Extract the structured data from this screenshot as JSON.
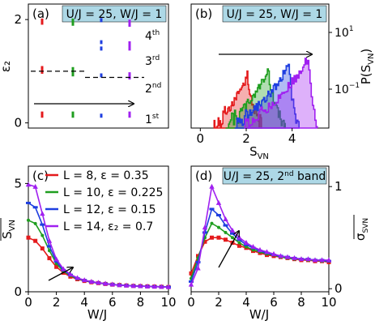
{
  "chart_data": [
    {
      "panel": "(a)",
      "type": "scatter",
      "title": "U/J = 25, W/J = 1",
      "ylabel": "ε₂",
      "xlabel": "",
      "y_ticks": [
        "0",
        "2"
      ],
      "ylim": [
        -0.1,
        2.3
      ],
      "band_labels": [
        "1st",
        "2nd",
        "3rd",
        "4th"
      ],
      "bands": [
        {
          "name": "1st",
          "segments": [
            {
              "color": "red",
              "y": [
                0.1,
                0.22
              ]
            },
            {
              "color": "green",
              "y": [
                0.1,
                0.22
              ]
            },
            {
              "color": "blue",
              "y": [
                0.1,
                0.22
              ]
            },
            {
              "color": "purple",
              "y": [
                0.1,
                0.22
              ]
            }
          ]
        },
        {
          "name": "2nd",
          "segments": [
            {
              "color": "red",
              "y": [
                0.95,
                1.1
              ]
            },
            {
              "color": "green",
              "y": [
                0.9,
                1.08
              ]
            },
            {
              "color": "blue",
              "y": [
                0.88,
                1.0
              ]
            },
            {
              "color": "purple",
              "y": [
                0.84,
                0.98
              ]
            }
          ]
        },
        {
          "name": "3rd",
          "segments": [
            {
              "color": "blue",
              "y": [
                1.4,
                1.6
              ]
            },
            {
              "color": "purple",
              "y": [
                1.4,
                1.58
              ]
            }
          ]
        },
        {
          "name": "4th",
          "segments": [
            {
              "color": "red",
              "y": [
                1.9,
                2.02
              ]
            },
            {
              "color": "green",
              "y": [
                1.88,
                2.02
              ]
            },
            {
              "color": "blue",
              "y": [
                1.95,
                2.05
              ]
            },
            {
              "color": "purple",
              "y": [
                1.86,
                2.0
              ]
            }
          ]
        }
      ]
    },
    {
      "panel": "(b)",
      "type": "area",
      "title": "U/J = 25, W/J = 1",
      "xlabel": "S_VN",
      "ylabel": "P(S_VN)",
      "x_ticks": [
        "0",
        "2",
        "4"
      ],
      "y_ticks": [
        "10^-1",
        "10^1"
      ],
      "y_scale": "log",
      "xlim": [
        -0.4,
        5.6
      ],
      "series": [
        {
          "color": "red",
          "peak": 2.05,
          "x_range": [
            0.6,
            2.7
          ]
        },
        {
          "color": "green",
          "peak": 2.95,
          "x_range": [
            1.1,
            3.7
          ]
        },
        {
          "color": "blue",
          "peak": 3.85,
          "x_range": [
            1.5,
            4.3
          ]
        },
        {
          "color": "purple",
          "peak": 4.7,
          "x_range": [
            1.9,
            5.1
          ]
        }
      ]
    },
    {
      "panel": "(c)",
      "type": "line",
      "xlabel": "W/J",
      "ylabel": "S_VN (mean)",
      "x_ticks": [
        "0",
        "2",
        "4",
        "6",
        "8",
        "10"
      ],
      "y_ticks": [
        "0",
        "5"
      ],
      "xlim": [
        0,
        10
      ],
      "ylim": [
        0,
        5.8
      ],
      "legend": "top-left",
      "x": [
        0,
        0.5,
        1,
        1.5,
        2,
        2.5,
        3,
        3.5,
        4,
        4.5,
        5,
        5.5,
        6,
        6.5,
        7,
        7.5,
        8,
        8.5,
        9,
        9.5,
        10
      ],
      "series": [
        {
          "name": "L = 8,  ε = 0.35",
          "color": "red",
          "values": [
            2.5,
            2.35,
            2.0,
            1.55,
            1.15,
            0.88,
            0.7,
            0.58,
            0.5,
            0.44,
            0.4,
            0.36,
            0.33,
            0.31,
            0.29,
            0.27,
            0.26,
            0.25,
            0.24,
            0.23,
            0.22
          ]
        },
        {
          "name": "L = 10,  ε = 0.225",
          "color": "green",
          "values": [
            3.3,
            3.15,
            2.6,
            1.9,
            1.3,
            0.95,
            0.75,
            0.6,
            0.52,
            0.45,
            0.41,
            0.37,
            0.34,
            0.31,
            0.29,
            0.27,
            0.26,
            0.25,
            0.24,
            0.23,
            0.22
          ]
        },
        {
          "name": "L = 12,  ε = 0.15",
          "color": "blue",
          "values": [
            4.1,
            3.9,
            3.1,
            2.1,
            1.4,
            1.0,
            0.78,
            0.62,
            0.53,
            0.46,
            0.41,
            0.37,
            0.34,
            0.31,
            0.29,
            0.27,
            0.26,
            0.25,
            0.24,
            0.23,
            0.22
          ]
        },
        {
          "name": "L = 14,  ε₂ = 0.7",
          "color": "purple",
          "values": [
            4.95,
            4.85,
            3.6,
            2.35,
            1.5,
            1.05,
            0.8,
            0.64,
            0.54,
            0.47,
            0.42,
            0.38,
            0.34,
            0.31,
            0.29,
            0.27,
            0.26,
            0.25,
            0.24,
            0.23,
            0.22
          ]
        }
      ]
    },
    {
      "panel": "(d)",
      "type": "line",
      "title": "U/J = 25, 2nd band",
      "xlabel": "W/J",
      "ylabel": "σ_SVN (mean)",
      "x_ticks": [
        "0",
        "2",
        "4",
        "6",
        "8",
        "10"
      ],
      "y_ticks": [
        "0",
        "1"
      ],
      "xlim": [
        0,
        10
      ],
      "ylim": [
        -0.03,
        1.2
      ],
      "x": [
        0,
        0.5,
        1,
        1.5,
        2,
        2.5,
        3,
        3.5,
        4,
        4.5,
        5,
        5.5,
        6,
        6.5,
        7,
        7.5,
        8,
        8.5,
        9,
        9.5,
        10
      ],
      "series": [
        {
          "color": "red",
          "values": [
            0.15,
            0.32,
            0.46,
            0.5,
            0.5,
            0.48,
            0.45,
            0.42,
            0.4,
            0.37,
            0.35,
            0.33,
            0.32,
            0.31,
            0.3,
            0.29,
            0.28,
            0.28,
            0.27,
            0.27,
            0.26
          ]
        },
        {
          "color": "green",
          "values": [
            0.1,
            0.3,
            0.5,
            0.64,
            0.6,
            0.55,
            0.5,
            0.45,
            0.41,
            0.38,
            0.36,
            0.34,
            0.33,
            0.31,
            0.3,
            0.29,
            0.29,
            0.28,
            0.28,
            0.27,
            0.27
          ]
        },
        {
          "color": "blue",
          "values": [
            0.07,
            0.26,
            0.55,
            0.78,
            0.72,
            0.62,
            0.54,
            0.48,
            0.43,
            0.4,
            0.37,
            0.35,
            0.33,
            0.32,
            0.31,
            0.3,
            0.29,
            0.29,
            0.28,
            0.28,
            0.27
          ]
        },
        {
          "color": "purple",
          "values": [
            0.04,
            0.2,
            0.6,
            1.0,
            0.84,
            0.68,
            0.57,
            0.5,
            0.45,
            0.41,
            0.38,
            0.36,
            0.34,
            0.32,
            0.31,
            0.3,
            0.29,
            0.29,
            0.28,
            0.28,
            0.28
          ]
        }
      ]
    }
  ],
  "colors": {
    "red": "#e41a1c",
    "green": "#1f9e1f",
    "blue": "#1f3fe0",
    "purple": "#a020f0",
    "title_box": "#add8e6"
  }
}
